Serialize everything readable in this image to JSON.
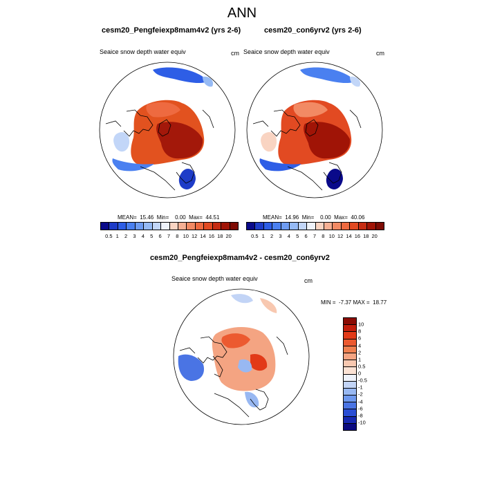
{
  "title": "ANN",
  "panels": [
    {
      "case": "cesm20_Pengfeiexp8mam4v2 (yrs 2-6)",
      "variable": "Seaice snow depth water equiv",
      "units": "cm",
      "stats": "MEAN=  15.46  Min=    0.00  Max=  44.51"
    },
    {
      "case": "cesm20_con6yrv2 (yrs 2-6)",
      "variable": "Seaice snow depth water equiv",
      "units": "cm",
      "stats": "MEAN=  14.96  Min=    0.00  Max=  40.06"
    }
  ],
  "diff": {
    "title": "cesm20_Pengfeiexp8mam4v2 - cesm20_con6yrv2",
    "variable": "Seaice snow depth water equiv",
    "units": "cm",
    "stats": "MIN =  -7.37 MAX =  18.77"
  },
  "colorbar_abs": {
    "labels": [
      "0.5",
      "1",
      "2",
      "3",
      "4",
      "5",
      "6",
      "7",
      "8",
      "10",
      "12",
      "14",
      "16",
      "18",
      "20"
    ],
    "colors": [
      "#0a0a8a",
      "#1e3cc8",
      "#2e5ee6",
      "#4a80f0",
      "#6e9cf2",
      "#96baf4",
      "#c2d6f8",
      "#eef2fa",
      "#f9d4c2",
      "#f6b094",
      "#f28a64",
      "#ee6a40",
      "#e24a22",
      "#c62c12",
      "#a01406",
      "#7e0c04"
    ]
  },
  "colorbar_diff": {
    "labels": [
      "10",
      "8",
      "6",
      "4",
      "2",
      "1",
      "0.5",
      "0",
      "-0.5",
      "-1",
      "-2",
      "-4",
      "-6",
      "-8",
      "-10"
    ],
    "colors": [
      "#8a0c04",
      "#c21e0c",
      "#e23a18",
      "#ec5a30",
      "#f08050",
      "#f4a482",
      "#f8c8b0",
      "#fbe2d4",
      "#eef2fa",
      "#c2d4f6",
      "#98b8f2",
      "#6e98ee",
      "#4a74e4",
      "#2a4ed4",
      "#1628b0",
      "#0a0a80"
    ]
  },
  "colors": {
    "land_outline": "#000000",
    "background": "#ffffff"
  }
}
